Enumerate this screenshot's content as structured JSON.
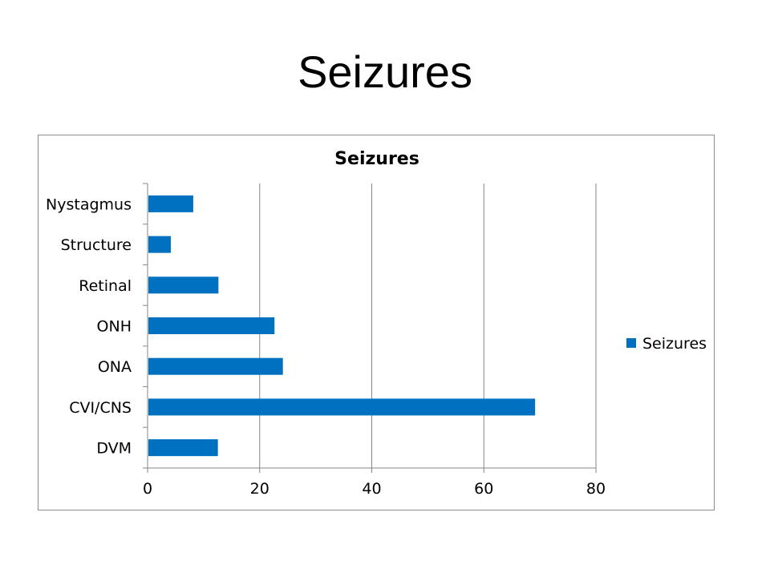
{
  "slide": {
    "title": "Seizures"
  },
  "colors": {
    "bar": "#0070c0",
    "grid": "#868686",
    "axis": "#868686"
  },
  "chart_data": {
    "type": "bar",
    "orientation": "horizontal",
    "title": "Seizures",
    "categories": [
      "Nystagmus",
      "Structure",
      "Retinal",
      "ONH",
      "ONA",
      "CVI/CNS",
      "DVM"
    ],
    "series": [
      {
        "name": "Seizures",
        "values": [
          8,
          4,
          12.5,
          22.5,
          24,
          69,
          12.4
        ]
      }
    ],
    "xlim": [
      0,
      80
    ],
    "xticks": [
      "0",
      "20",
      "40",
      "60",
      "80"
    ],
    "grid": true,
    "legend_position": "right"
  }
}
